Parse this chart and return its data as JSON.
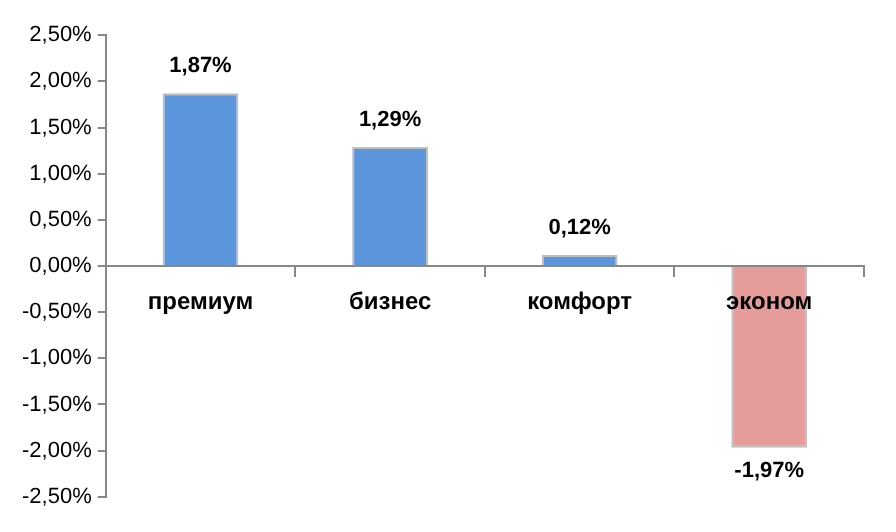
{
  "chart_data": {
    "type": "bar",
    "categories": [
      "премиум",
      "бизнес",
      "комфорт",
      "эконом"
    ],
    "values": [
      1.87,
      1.29,
      0.12,
      -1.97
    ],
    "colors": [
      "#5b96dc",
      "#5b96dc",
      "#5b96dc",
      "#e59c9b"
    ],
    "value_labels": [
      "1,87%",
      "1,29%",
      "0,12%",
      "-1,97%"
    ],
    "ylim": [
      -2.5,
      2.5
    ],
    "yticks": [
      {
        "value": -2.5,
        "label": "-2,50%"
      },
      {
        "value": -2,
        "label": "-2,00%"
      },
      {
        "value": -1.5,
        "label": "-1,50%"
      },
      {
        "value": -1,
        "label": "-1,00%"
      },
      {
        "value": -0.5,
        "label": "-0,50%"
      },
      {
        "value": 0,
        "label": "0,00%"
      },
      {
        "value": 0.5,
        "label": "0,50%"
      },
      {
        "value": 1,
        "label": "1,00%"
      },
      {
        "value": 1.5,
        "label": "1,50%"
      },
      {
        "value": 2,
        "label": "2,00%"
      },
      {
        "value": 2.5,
        "label": "2,50%"
      }
    ],
    "grid": false,
    "legend": false
  }
}
